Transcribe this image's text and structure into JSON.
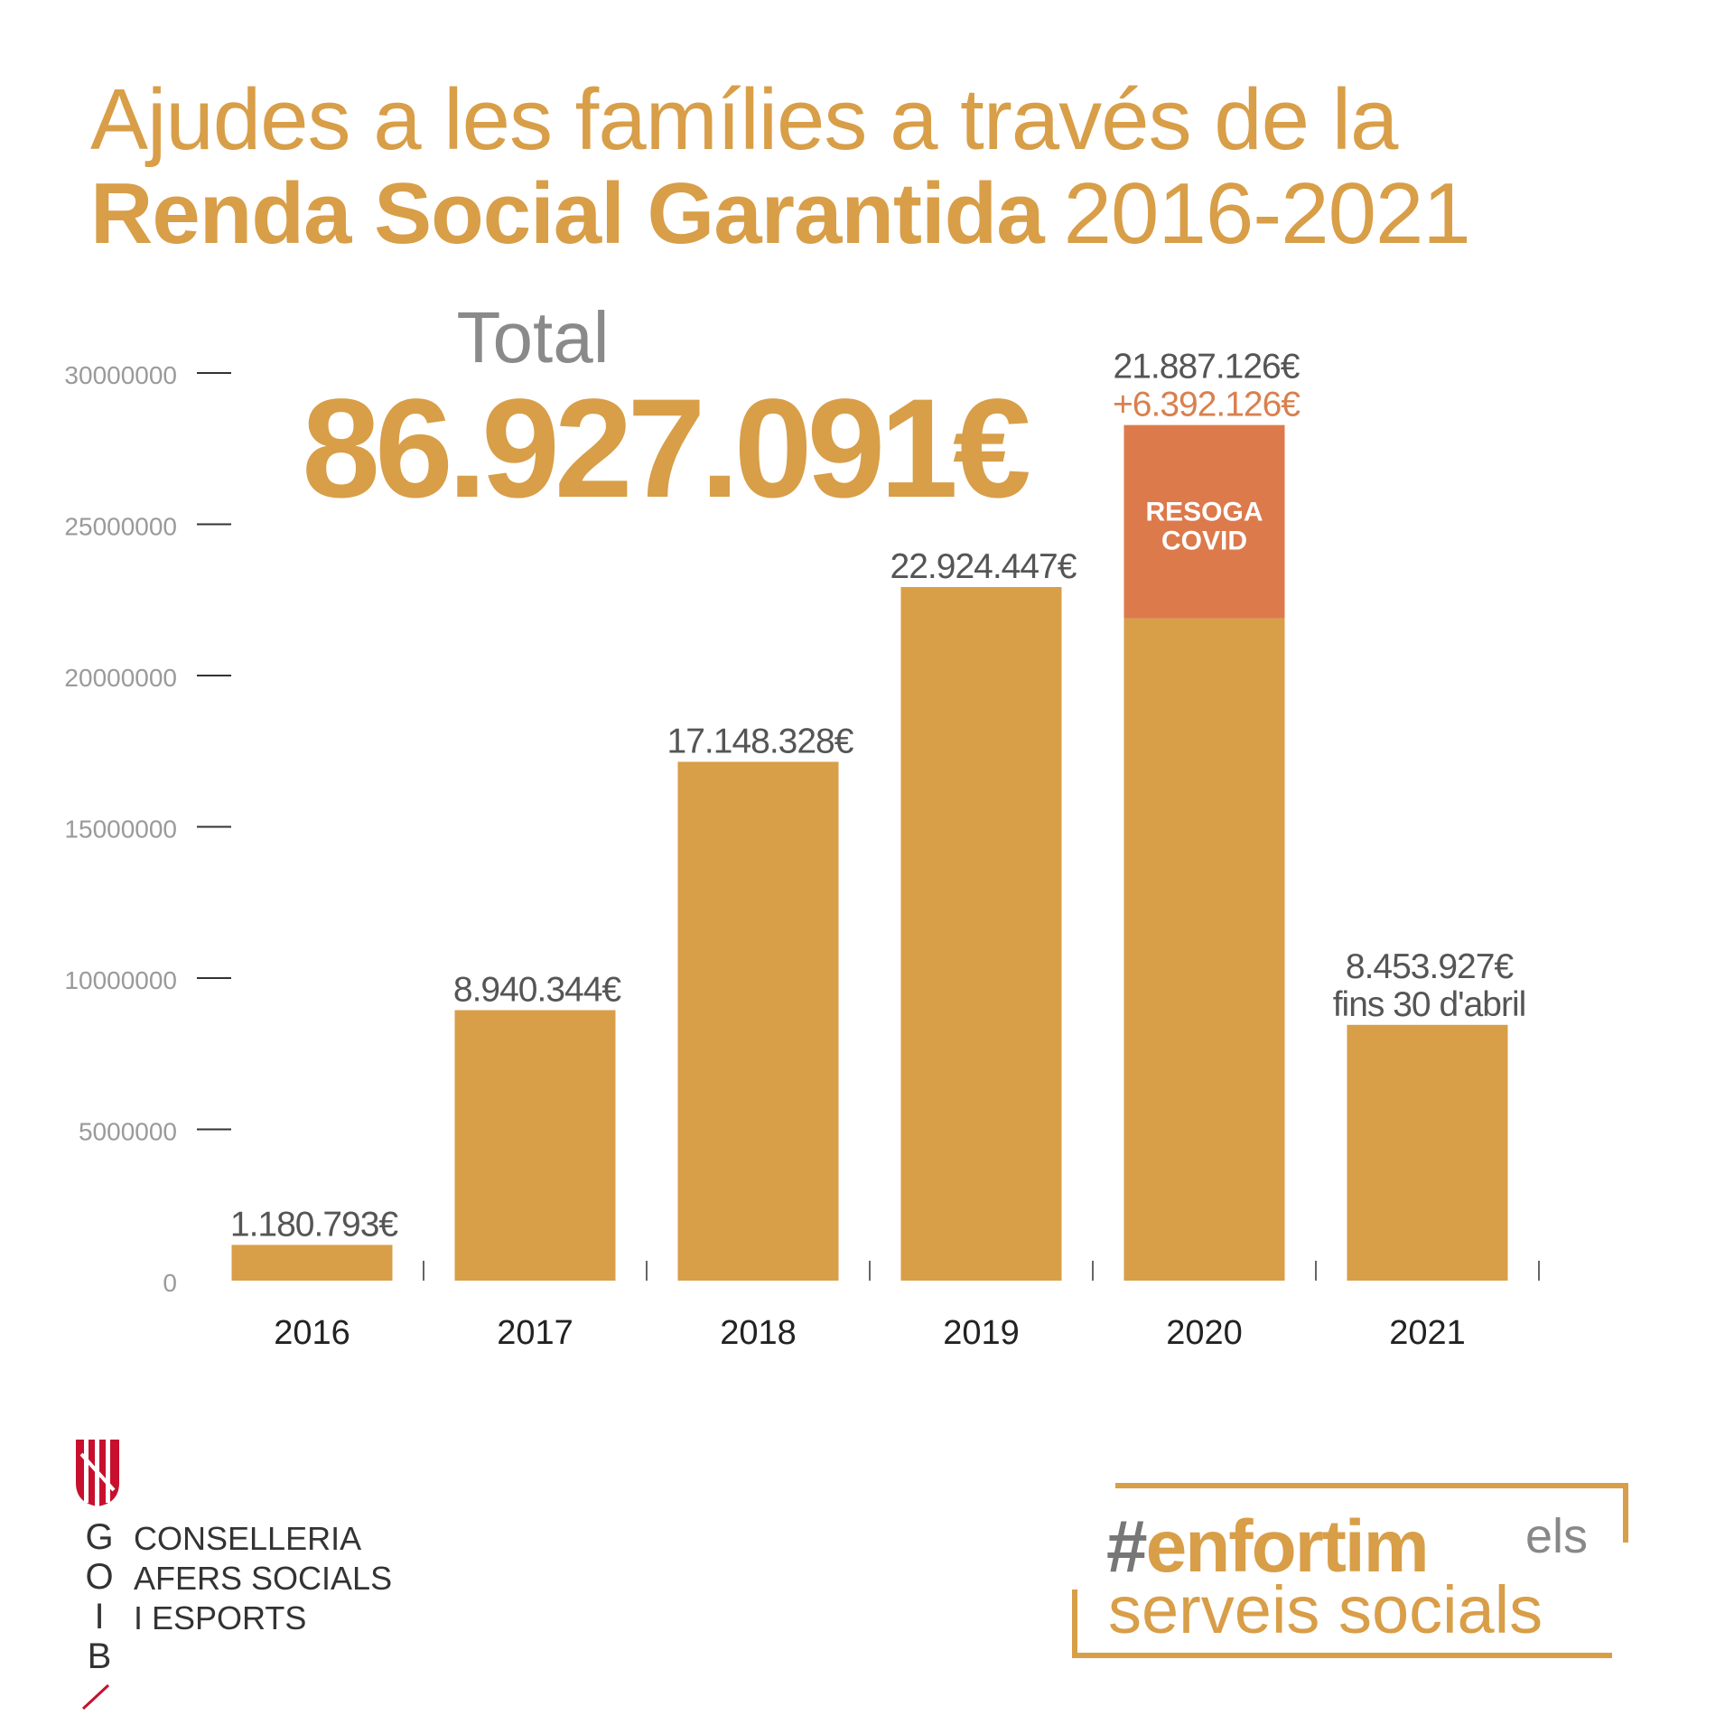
{
  "title": {
    "line1": "Ajudes a les famílies a través de la",
    "line2_bold": "Renda Social Garantida",
    "line2_years": "2016-2021"
  },
  "total": {
    "label": "Total",
    "value": "86.927.091€"
  },
  "chart_data": {
    "type": "bar",
    "title": "Ajudes a les famílies a través de la Renda Social Garantida 2016-2021",
    "xlabel": "",
    "ylabel": "",
    "categories": [
      "2016",
      "2017",
      "2018",
      "2019",
      "2020",
      "2021"
    ],
    "series": [
      {
        "values": [
          1180793,
          8940344,
          17148328,
          22924447,
          21887126,
          8453927
        ]
      },
      {
        "name": "RESOGA COVID",
        "values": [
          0,
          0,
          0,
          0,
          6392126,
          0
        ]
      }
    ],
    "stacked": true,
    "data_labels": [
      [
        "1.180.793€"
      ],
      [
        "8.940.344€"
      ],
      [
        "17.148.328€"
      ],
      [
        "22.924.447€"
      ],
      [
        "21.887.126€",
        "+6.392.126€"
      ],
      [
        "8.453.927€",
        "fins 30 d'abril"
      ]
    ],
    "ylim": [
      0,
      30000000
    ],
    "y_ticks": [
      0,
      5000000,
      10000000,
      15000000,
      20000000,
      25000000,
      30000000
    ],
    "y_tick_labels": [
      "0",
      "5000000",
      "10000000",
      "15000000",
      "20000000",
      "25000000",
      "30000000"
    ],
    "grid": false,
    "colors": {
      "base": "#d89e48",
      "covid": "#dc7a4c",
      "covid_label": "#d8804e",
      "value_label": "#555555"
    }
  },
  "logo": {
    "letters": [
      "G",
      "O",
      "I",
      "B"
    ],
    "lines": [
      "CONSELLERIA",
      "AFERS SOCIALS",
      "I ESPORTS"
    ]
  },
  "campaign": {
    "hash": "#",
    "word": "enfortim",
    "els": "els",
    "line2": "serveis socials"
  }
}
